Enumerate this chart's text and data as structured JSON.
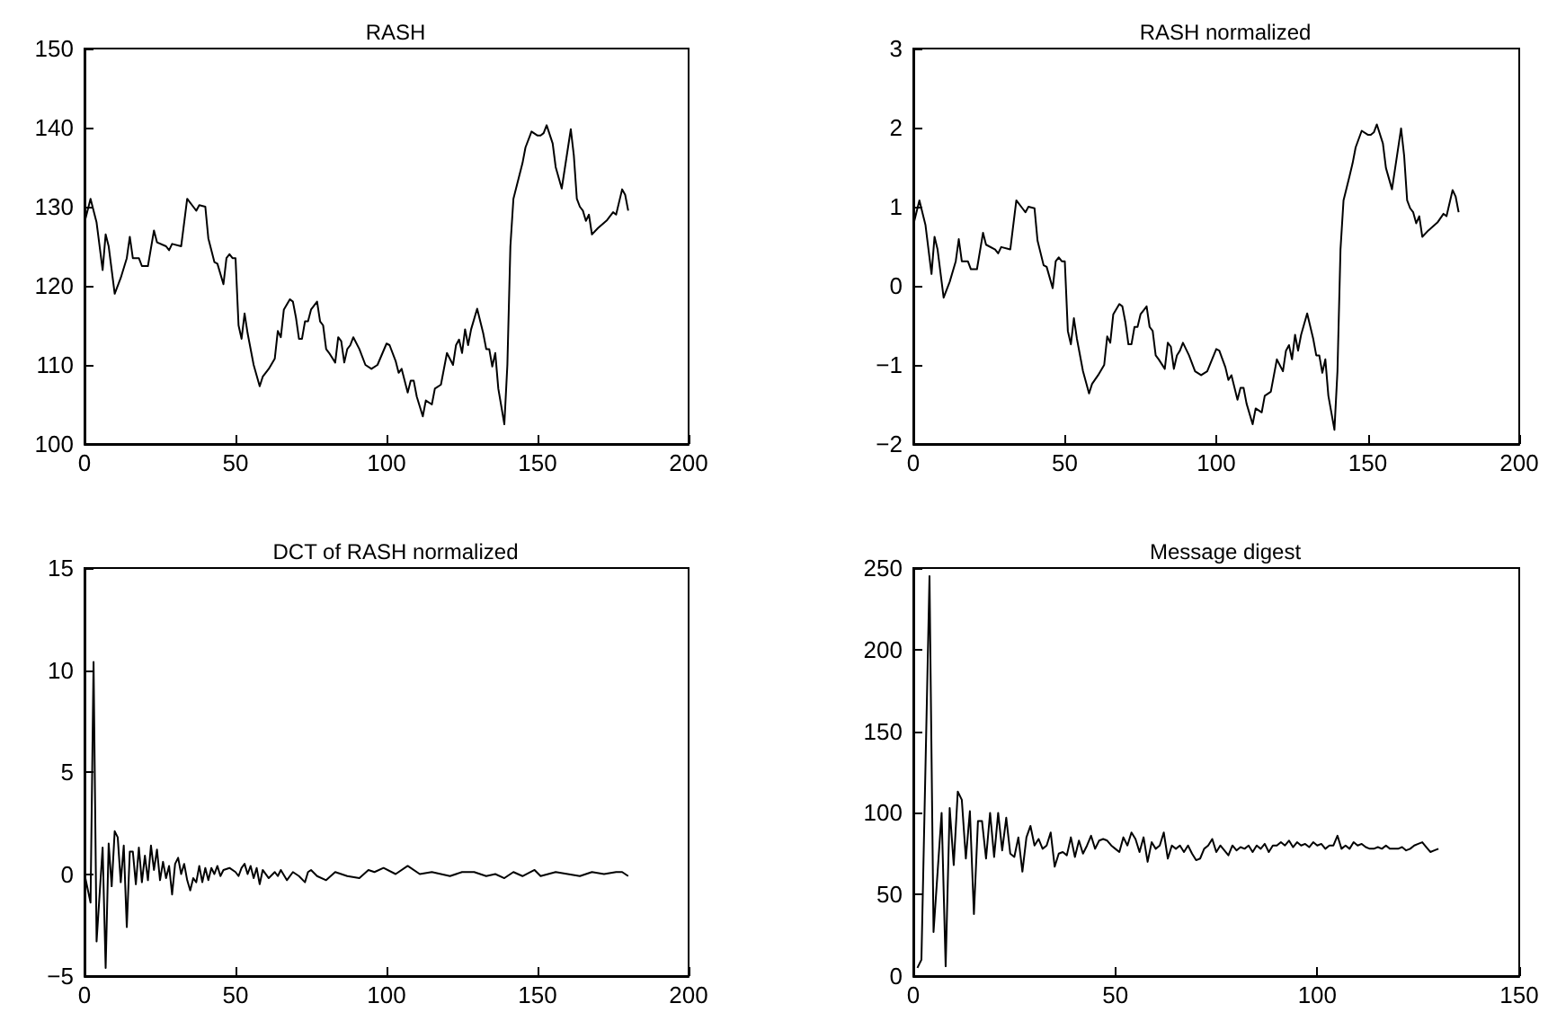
{
  "chart_data": [
    {
      "type": "line",
      "title": "RASH",
      "color": "#000000",
      "xlim": [
        0,
        200
      ],
      "xticks": [
        0,
        50,
        100,
        150,
        200
      ],
      "ylim": [
        100,
        150
      ],
      "yticks": [
        100,
        110,
        120,
        130,
        140,
        150
      ],
      "x": [
        0,
        2,
        4,
        6,
        7,
        8,
        10,
        12,
        14,
        15,
        16,
        18,
        19,
        21,
        23,
        24,
        27,
        28,
        29,
        32,
        34,
        36,
        37,
        38,
        40,
        41,
        43,
        44,
        46,
        47,
        48,
        49,
        50,
        51,
        52,
        53,
        54,
        56,
        58,
        59,
        61,
        63,
        64,
        65,
        66,
        68,
        69,
        70,
        71,
        72,
        73,
        74,
        75,
        77,
        78,
        79,
        80,
        81,
        83,
        84,
        85,
        86,
        87,
        88,
        89,
        91,
        93,
        95,
        97,
        100,
        101,
        103,
        104,
        105,
        107,
        108,
        109,
        110,
        112,
        113,
        115,
        116,
        118,
        120,
        122,
        123,
        124,
        125,
        126,
        127,
        128,
        130,
        132,
        133,
        134,
        135,
        136,
        137,
        139,
        140,
        141,
        142,
        144,
        145,
        146,
        148,
        150,
        151,
        152,
        153,
        155,
        156,
        158,
        161,
        162,
        163,
        164,
        165,
        166,
        167,
        168,
        170,
        173,
        175,
        176,
        178,
        179,
        180
      ],
      "values": [
        128,
        131,
        128,
        122,
        126.5,
        125,
        119,
        121,
        123.5,
        126.2,
        123.5,
        123.5,
        122.5,
        122.5,
        127,
        125.5,
        125,
        124.5,
        125.3,
        125,
        131,
        130,
        129.5,
        130.2,
        130,
        126,
        123,
        122.8,
        120.2,
        123.5,
        124,
        123.5,
        123.5,
        115,
        113.3,
        116.5,
        114,
        110,
        107.3,
        108.5,
        109.5,
        110.8,
        114.3,
        113.5,
        117,
        118.3,
        118,
        116,
        113.3,
        113.3,
        115.5,
        115.5,
        117,
        118,
        115.5,
        115,
        112,
        111.5,
        110.3,
        113.5,
        113,
        110.3,
        112,
        112.5,
        113.5,
        112,
        110,
        109.5,
        110,
        112.7,
        112.5,
        110.5,
        109,
        109.5,
        106.5,
        108,
        108,
        106,
        103.5,
        105.5,
        105,
        107,
        107.5,
        111.5,
        110,
        112.5,
        113.2,
        111.5,
        114.5,
        112.5,
        114.5,
        117.1,
        114,
        112,
        112,
        109.8,
        111.5,
        107,
        102.5,
        110,
        125,
        131,
        134,
        135.5,
        137.5,
        139.5,
        139,
        139,
        139.3,
        140.3,
        138,
        135,
        132.3,
        139.8,
        136.5,
        131,
        130,
        129.5,
        128.2,
        129,
        126.5,
        127.3,
        128.3,
        129.3,
        129,
        132.2,
        131.5,
        129.5
      ]
    },
    {
      "type": "line",
      "title": "RASH normalized",
      "color": "#000000",
      "xlim": [
        0,
        200
      ],
      "xticks": [
        0,
        50,
        100,
        150,
        200
      ],
      "ylim": [
        -2,
        3
      ],
      "yticks": [
        -2,
        -1,
        0,
        1,
        2,
        3
      ],
      "x": [
        0,
        2,
        4,
        6,
        7,
        8,
        10,
        12,
        14,
        15,
        16,
        18,
        19,
        21,
        23,
        24,
        27,
        28,
        29,
        32,
        34,
        36,
        37,
        38,
        40,
        41,
        43,
        44,
        46,
        47,
        48,
        49,
        50,
        51,
        52,
        53,
        54,
        56,
        58,
        59,
        61,
        63,
        64,
        65,
        66,
        68,
        69,
        70,
        71,
        72,
        73,
        74,
        75,
        77,
        78,
        79,
        80,
        81,
        83,
        84,
        85,
        86,
        87,
        88,
        89,
        91,
        93,
        95,
        97,
        100,
        101,
        103,
        104,
        105,
        107,
        108,
        109,
        110,
        112,
        113,
        115,
        116,
        118,
        120,
        122,
        123,
        124,
        125,
        126,
        127,
        128,
        130,
        132,
        133,
        134,
        135,
        136,
        137,
        139,
        140,
        141,
        142,
        144,
        145,
        146,
        148,
        150,
        151,
        152,
        153,
        155,
        156,
        158,
        161,
        162,
        163,
        164,
        165,
        166,
        167,
        168,
        170,
        173,
        175,
        176,
        178,
        179,
        180
      ],
      "values": [
        0.77,
        1.08,
        0.77,
        0.15,
        0.62,
        0.46,
        -0.15,
        0.05,
        0.31,
        0.59,
        0.31,
        0.31,
        0.21,
        0.21,
        0.67,
        0.52,
        0.46,
        0.41,
        0.49,
        0.46,
        1.08,
        0.98,
        0.93,
        1.0,
        0.98,
        0.57,
        0.26,
        0.24,
        -0.03,
        0.31,
        0.36,
        0.31,
        0.31,
        -0.57,
        -0.74,
        -0.41,
        -0.67,
        -1.08,
        -1.36,
        -1.24,
        -1.13,
        -1.0,
        -0.64,
        -0.72,
        -0.36,
        -0.23,
        -0.26,
        -0.46,
        -0.74,
        -0.74,
        -0.52,
        -0.52,
        -0.36,
        -0.26,
        -0.52,
        -0.57,
        -0.88,
        -0.93,
        -1.05,
        -0.72,
        -0.77,
        -1.05,
        -0.88,
        -0.82,
        -0.72,
        -0.88,
        -1.08,
        -1.13,
        -1.08,
        -0.8,
        -0.82,
        -1.03,
        -1.19,
        -1.13,
        -1.44,
        -1.29,
        -1.29,
        -1.49,
        -1.75,
        -1.55,
        -1.6,
        -1.39,
        -1.34,
        -0.93,
        -1.08,
        -0.82,
        -0.75,
        -0.93,
        -0.62,
        -0.82,
        -0.62,
        -0.35,
        -0.67,
        -0.88,
        -0.88,
        -1.1,
        -0.93,
        -1.39,
        -1.82,
        -1.08,
        0.46,
        1.08,
        1.39,
        1.55,
        1.75,
        1.96,
        1.91,
        1.91,
        1.94,
        2.04,
        1.8,
        1.49,
        1.22,
        1.99,
        1.65,
        1.08,
        0.98,
        0.93,
        0.79,
        0.88,
        0.62,
        0.7,
        0.8,
        0.91,
        0.88,
        1.21,
        1.13,
        0.93
      ]
    },
    {
      "type": "line",
      "title": "DCT of RASH normalized",
      "color": "#000000",
      "xlim": [
        0,
        200
      ],
      "xticks": [
        0,
        50,
        100,
        150,
        200
      ],
      "ylim": [
        -5,
        15
      ],
      "yticks": [
        -5,
        0,
        5,
        10,
        15
      ],
      "x": [
        0,
        2,
        3,
        4,
        6,
        7,
        8,
        9,
        10,
        11,
        12,
        13,
        14,
        15,
        16,
        17,
        18,
        19,
        20,
        21,
        22,
        23,
        24,
        25,
        26,
        27,
        28,
        29,
        30,
        31,
        32,
        33,
        34,
        35,
        36,
        37,
        38,
        39,
        40,
        41,
        42,
        43,
        44,
        45,
        46,
        48,
        50,
        51,
        52,
        53,
        54,
        55,
        56,
        57,
        58,
        59,
        61,
        63,
        64,
        65,
        67,
        69,
        71,
        73,
        74,
        75,
        77,
        80,
        83,
        87,
        91,
        94,
        96,
        99,
        103,
        107,
        111,
        115,
        121,
        125,
        129,
        133,
        136,
        139,
        142,
        145,
        149,
        151,
        156,
        160,
        164,
        168,
        172,
        176,
        178,
        180
      ],
      "values": [
        0,
        -1.4,
        10.4,
        -3.3,
        1.3,
        -4.6,
        1.5,
        -0.6,
        2.1,
        1.8,
        -0.4,
        1.4,
        -2.6,
        1.1,
        1.1,
        -0.5,
        1.3,
        -0.4,
        0.9,
        -0.3,
        1.4,
        0.2,
        1.2,
        -0.3,
        0.6,
        -0.2,
        0.4,
        -1.0,
        0.5,
        0.8,
        0,
        0.5,
        -0.3,
        -0.8,
        -0.2,
        -0.4,
        0.4,
        -0.4,
        0.3,
        -0.3,
        0.3,
        0,
        0.4,
        -0.1,
        0.2,
        0.3,
        0.1,
        -0.1,
        0.3,
        0.5,
        0,
        0.4,
        -0.2,
        0.3,
        -0.5,
        0.2,
        -0.2,
        0.1,
        -0.1,
        0.2,
        -0.3,
        0.1,
        -0.1,
        -0.4,
        0.1,
        0.2,
        -0.1,
        -0.3,
        0.1,
        -0.1,
        -0.2,
        0.2,
        0.1,
        0.3,
        0,
        0.4,
        0,
        0.1,
        -0.1,
        0.1,
        0.1,
        -0.1,
        0,
        -0.2,
        0.1,
        -0.1,
        0.2,
        -0.1,
        0.1,
        0,
        -0.1,
        0.1,
        0,
        0.1,
        0.1,
        -0.1
      ]
    },
    {
      "type": "line",
      "title": "Message digest",
      "color": "#000000",
      "xlim": [
        0,
        150
      ],
      "xticks": [
        0,
        50,
        100,
        150
      ],
      "ylim": [
        0,
        250
      ],
      "yticks": [
        0,
        50,
        100,
        150,
        200,
        250
      ],
      "x": [
        1,
        2,
        4,
        5,
        7,
        8,
        9,
        10,
        11,
        12,
        13,
        14,
        15,
        16,
        17,
        18,
        19,
        20,
        21,
        22,
        23,
        24,
        25,
        26,
        27,
        28,
        29,
        30,
        31,
        32,
        33,
        34,
        35,
        36,
        37,
        38,
        39,
        40,
        41,
        42,
        43,
        44,
        45,
        46,
        47,
        48,
        49,
        50,
        51,
        52,
        53,
        54,
        55,
        56,
        57,
        58,
        59,
        60,
        61,
        62,
        63,
        64,
        65,
        66,
        67,
        68,
        69,
        70,
        71,
        72,
        73,
        74,
        75,
        76,
        77,
        78,
        79,
        80,
        81,
        82,
        83,
        84,
        85,
        86,
        87,
        88,
        89,
        90,
        91,
        92,
        93,
        94,
        95,
        96,
        97,
        98,
        99,
        100,
        101,
        102,
        103,
        104,
        105,
        106,
        107,
        108,
        109,
        110,
        111,
        112,
        113,
        114,
        115,
        116,
        117,
        118,
        119,
        120,
        121,
        122,
        123,
        124,
        125,
        126,
        127,
        128,
        129,
        130
      ],
      "values": [
        5,
        10,
        245,
        27,
        100,
        6,
        103,
        68,
        113,
        108,
        72,
        101,
        38,
        95,
        95,
        72,
        100,
        73,
        100,
        77,
        97,
        75,
        73,
        85,
        64,
        85,
        92,
        80,
        84,
        78,
        80,
        88,
        67,
        75,
        76,
        74,
        85,
        73,
        83,
        75,
        80,
        86,
        78,
        83,
        84,
        83,
        80,
        78,
        76,
        85,
        80,
        88,
        84,
        76,
        85,
        70,
        82,
        78,
        80,
        88,
        72,
        80,
        78,
        80,
        76,
        80,
        75,
        71,
        72,
        78,
        80,
        84,
        76,
        80,
        77,
        74,
        80,
        77,
        79,
        78,
        80,
        76,
        80,
        78,
        81,
        76,
        80,
        80,
        82,
        80,
        83,
        79,
        82,
        80,
        81,
        79,
        82,
        80,
        81,
        78,
        80,
        80,
        86,
        78,
        80,
        78,
        82,
        80,
        81,
        79,
        78,
        78,
        79,
        78,
        80,
        78,
        78,
        78,
        79,
        77,
        78,
        80,
        81,
        82,
        79,
        76,
        77,
        78
      ]
    }
  ]
}
